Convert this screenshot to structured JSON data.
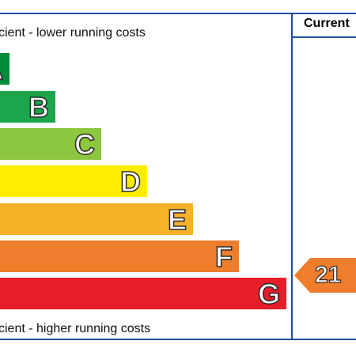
{
  "header": {
    "current_label": "Current"
  },
  "captions": {
    "top": "cient - lower running costs",
    "bottom": "cient - higher running costs"
  },
  "chart_data": {
    "type": "bar",
    "title": "",
    "categories": [
      "A",
      "B",
      "C",
      "D",
      "E",
      "F",
      "G"
    ],
    "colors": [
      "#008a3c",
      "#1ca54a",
      "#8dc63f",
      "#ffed00",
      "#f7b22a",
      "#ef7e2c",
      "#e61e2a"
    ],
    "current_rating": {
      "band": "F",
      "value": 21,
      "color": "#ef7e2c"
    }
  }
}
